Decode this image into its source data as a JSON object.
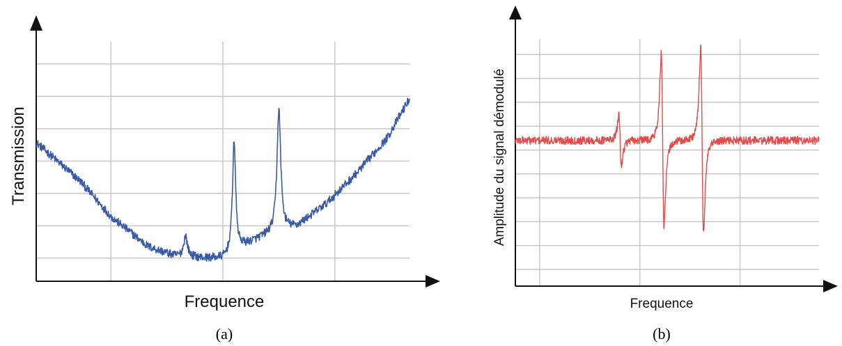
{
  "chart_data": [
    {
      "type": "line",
      "panel_label": "(a)",
      "xlabel": "Frequence",
      "ylabel": "Transmission",
      "grid": true,
      "x_gridlines": [
        0.2,
        0.5,
        0.8
      ],
      "y_gridlines": [
        0.1,
        0.24,
        0.38,
        0.52,
        0.66,
        0.8,
        0.94
      ],
      "xlim": [
        0,
        1
      ],
      "ylim": [
        0,
        1
      ],
      "series": [
        {
          "color": "#3b5aa6",
          "baseline": [
            [
              0,
              0.6
            ],
            [
              0.12,
              0.43
            ],
            [
              0.2,
              0.28
            ],
            [
              0.3,
              0.15
            ],
            [
              0.37,
              0.11
            ],
            [
              0.45,
              0.1
            ],
            [
              0.5,
              0.1
            ],
            [
              0.55,
              0.15
            ],
            [
              0.62,
              0.2
            ],
            [
              0.7,
              0.24
            ],
            [
              0.78,
              0.34
            ],
            [
              0.86,
              0.47
            ],
            [
              0.94,
              0.62
            ],
            [
              1.0,
              0.79
            ]
          ],
          "peaks": [
            {
              "x": 0.4,
              "height": 0.09,
              "width": 0.006
            },
            {
              "x": 0.53,
              "height": 0.48,
              "width": 0.005
            },
            {
              "x": 0.65,
              "height": 0.53,
              "width": 0.006
            }
          ],
          "noise": 0.018
        }
      ]
    },
    {
      "type": "line",
      "panel_label": "(b)",
      "xlabel": "Frequence",
      "ylabel": "Amplitude du signal démodulé",
      "grid": true,
      "x_gridlines": [
        0.08,
        0.41,
        0.74
      ],
      "y_gridlines": [
        0.07,
        0.17,
        0.27,
        0.37,
        0.47,
        0.57,
        0.67,
        0.77,
        0.87,
        0.97
      ],
      "xlim": [
        0,
        1
      ],
      "ylim": [
        0,
        1
      ],
      "series": [
        {
          "color": "#e34b4b",
          "baseline_level": 0.61,
          "features": [
            {
              "x": 0.345,
              "amplitude": 0.13,
              "width": 0.007
            },
            {
              "x": 0.485,
              "amplitude": 0.43,
              "width": 0.008
            },
            {
              "x": 0.615,
              "amplitude": 0.46,
              "width": 0.008
            }
          ],
          "noise": 0.017
        }
      ]
    }
  ]
}
